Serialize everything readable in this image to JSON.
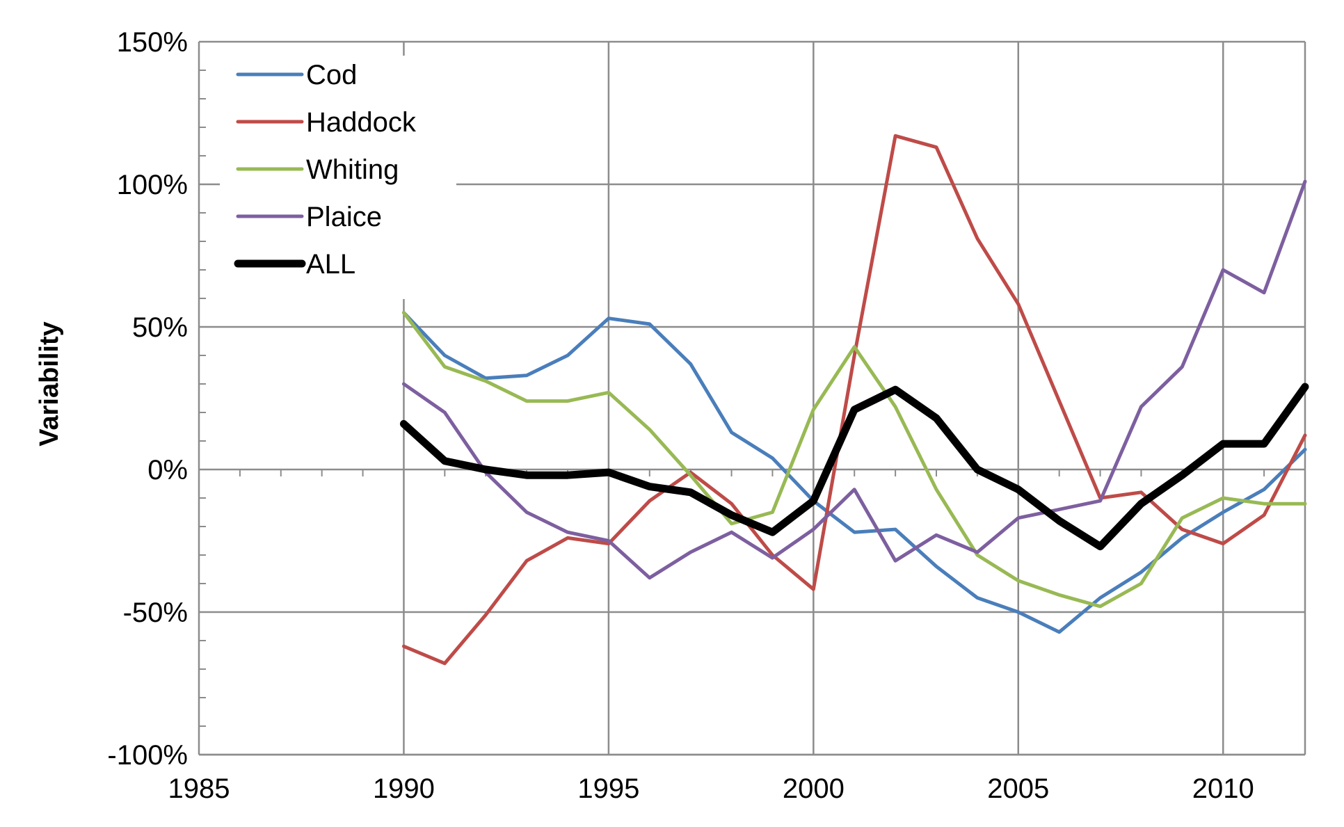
{
  "chart_data": {
    "type": "line",
    "title": "",
    "xlabel": "",
    "ylabel": "Variability",
    "xlim": [
      1985,
      2012
    ],
    "ylim": [
      -100,
      150
    ],
    "x_ticks": [
      1985,
      1990,
      1995,
      2000,
      2005,
      2010
    ],
    "x_tick_labels": [
      "1985",
      "1990",
      "1995",
      "2000",
      "2005",
      "2010"
    ],
    "y_ticks": [
      -100,
      -50,
      0,
      50,
      100,
      150
    ],
    "y_tick_labels": [
      "-100%",
      "-50%",
      "0%",
      "50%",
      "100%",
      "150%"
    ],
    "grid": true,
    "legend_position": "top-left",
    "x": [
      1990,
      1991,
      1992,
      1993,
      1994,
      1995,
      1996,
      1997,
      1998,
      1999,
      2000,
      2001,
      2002,
      2003,
      2004,
      2005,
      2006,
      2007,
      2008,
      2009,
      2010,
      2011,
      2012
    ],
    "series": [
      {
        "name": "Cod",
        "color": "#4a7ebb",
        "width": 5,
        "values": [
          55,
          40,
          32,
          33,
          40,
          53,
          51,
          37,
          13,
          4,
          -11,
          -22,
          -21,
          -34,
          -45,
          -50,
          -57,
          -45,
          -36,
          -24,
          -15,
          -7,
          7
        ]
      },
      {
        "name": "Haddock",
        "color": "#be4b48",
        "width": 5,
        "values": [
          -62,
          -68,
          -51,
          -32,
          -24,
          -26,
          -11,
          -1,
          -12,
          -30,
          -42,
          40,
          117,
          113,
          81,
          58,
          24,
          -10,
          -8,
          -21,
          -26,
          -16,
          12
        ]
      },
      {
        "name": "Whiting",
        "color": "#98b954",
        "width": 5,
        "values": [
          55,
          36,
          31,
          24,
          24,
          27,
          14,
          -2,
          -19,
          -15,
          21,
          43,
          22,
          -7,
          -30,
          -39,
          -44,
          -48,
          -40,
          -17,
          -10,
          -12,
          -12
        ]
      },
      {
        "name": "Plaice",
        "color": "#7d5fa0",
        "width": 5,
        "values": [
          30,
          20,
          -1,
          -15,
          -22,
          -25,
          -38,
          -29,
          -22,
          -31,
          -21,
          -7,
          -32,
          -23,
          -29,
          -17,
          -14,
          -11,
          22,
          36,
          70,
          62,
          101
        ]
      },
      {
        "name": "ALL",
        "color": "#000000",
        "width": 11,
        "values": [
          16,
          3,
          0,
          -2,
          -2,
          -1,
          -6,
          -8,
          -16,
          -22,
          -11,
          21,
          28,
          18,
          0,
          -7,
          -18,
          -27,
          -12,
          -2,
          9,
          9,
          29
        ]
      }
    ]
  }
}
